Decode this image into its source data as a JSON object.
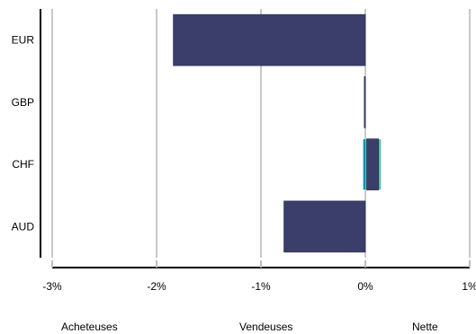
{
  "chart_data": {
    "type": "bar",
    "orientation": "horizontal",
    "categories": [
      "EUR",
      "GBP",
      "CHF",
      "AUD"
    ],
    "series": [
      {
        "name": "Acheteuses",
        "color": "#0e8fc0",
        "values": [
          0,
          0,
          -0.02,
          0
        ]
      },
      {
        "name": "Vendeuses",
        "color": "#55c4a8",
        "values": [
          0,
          0,
          0.15,
          0
        ]
      },
      {
        "name": "Nette",
        "color": "#3b3d6b",
        "values": [
          -1.84,
          -0.01,
          0.14,
          -0.78
        ]
      }
    ],
    "x_ticks": [
      "-3%",
      "-2%",
      "-1%",
      "0%",
      "1%"
    ],
    "xlim": [
      -3,
      1
    ],
    "grid": true,
    "legend_position": "bottom"
  }
}
